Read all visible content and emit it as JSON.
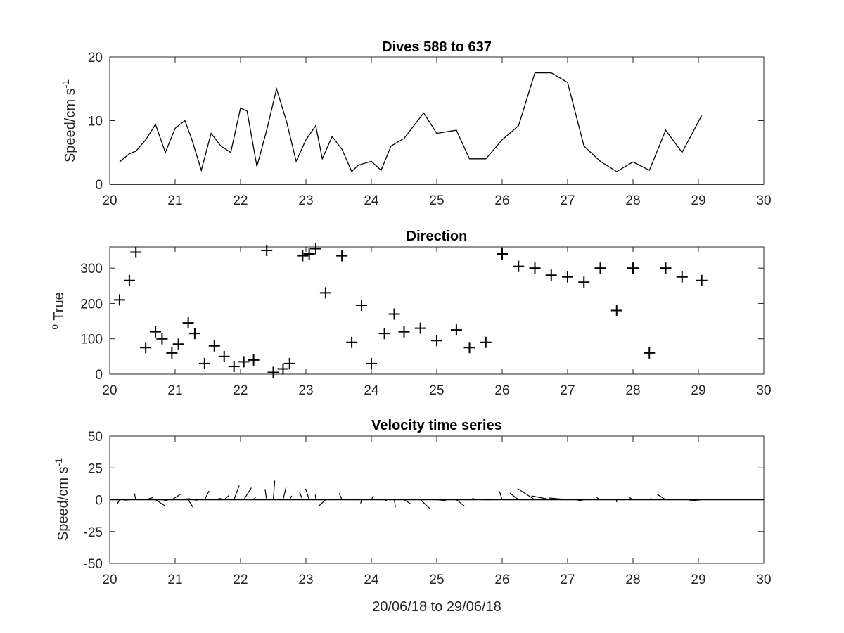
{
  "chart_data": [
    {
      "type": "line",
      "title": "Dives 588 to 637",
      "ylabel_main": "Speed/cm s",
      "ylabel_sup": "-1",
      "xlabel": "",
      "xlim": [
        20,
        30
      ],
      "ylim": [
        0,
        20
      ],
      "xticks": [
        "20",
        "21",
        "22",
        "23",
        "24",
        "25",
        "26",
        "27",
        "28",
        "29",
        "30"
      ],
      "yticks": [
        "0",
        "10",
        "20"
      ],
      "x": [
        20.15,
        20.3,
        20.4,
        20.55,
        20.7,
        20.85,
        21.0,
        21.15,
        21.25,
        21.4,
        21.55,
        21.7,
        21.85,
        22.0,
        22.1,
        22.25,
        22.4,
        22.55,
        22.7,
        22.85,
        23.0,
        23.15,
        23.25,
        23.4,
        23.55,
        23.7,
        23.8,
        24.0,
        24.15,
        24.3,
        24.5,
        24.8,
        25.0,
        25.3,
        25.5,
        25.75,
        26.0,
        26.25,
        26.5,
        26.75,
        27.0,
        27.25,
        27.5,
        27.75,
        28.0,
        28.25,
        28.5,
        28.75,
        29.05
      ],
      "y": [
        3.5,
        4.8,
        5.2,
        7.0,
        9.4,
        5.0,
        8.8,
        10.0,
        7.2,
        2.2,
        8.0,
        6.0,
        5.0,
        12.0,
        11.5,
        2.8,
        8.5,
        15.0,
        10.0,
        3.6,
        7.0,
        9.2,
        4.0,
        7.5,
        5.5,
        2.0,
        3.0,
        3.6,
        2.2,
        6.0,
        7.2,
        11.2,
        8.0,
        8.5,
        4.0,
        4.0,
        7.0,
        9.2,
        17.5,
        17.5,
        16.0,
        6.0,
        3.6,
        2.0,
        3.5,
        2.2,
        8.5,
        5.0,
        10.8
      ]
    },
    {
      "type": "scatter",
      "title": "Direction",
      "ylabel_sup": "o",
      "ylabel_main": " True",
      "xlabel": "",
      "xlim": [
        20,
        30
      ],
      "ylim": [
        0,
        360
      ],
      "xticks": [
        "20",
        "21",
        "22",
        "23",
        "24",
        "25",
        "26",
        "27",
        "28",
        "29",
        "30"
      ],
      "yticks": [
        "0",
        "100",
        "200",
        "300"
      ],
      "marker": "+",
      "x": [
        20.15,
        20.3,
        20.4,
        20.55,
        20.7,
        20.8,
        20.95,
        21.05,
        21.2,
        21.3,
        21.45,
        21.6,
        21.75,
        21.9,
        22.05,
        22.2,
        22.4,
        22.5,
        22.65,
        22.75,
        22.95,
        23.05,
        23.15,
        23.3,
        23.55,
        23.7,
        23.85,
        24.0,
        24.2,
        24.35,
        24.5,
        24.75,
        25.0,
        25.3,
        25.5,
        25.75,
        26.0,
        26.25,
        26.5,
        26.75,
        27.0,
        27.25,
        27.5,
        27.75,
        28.0,
        28.25,
        28.5,
        28.75,
        29.05
      ],
      "y": [
        210,
        265,
        345,
        75,
        120,
        100,
        60,
        85,
        145,
        115,
        30,
        80,
        50,
        22,
        35,
        40,
        350,
        5,
        15,
        30,
        335,
        340,
        355,
        230,
        335,
        90,
        195,
        30,
        115,
        170,
        120,
        130,
        95,
        125,
        75,
        90,
        340,
        305,
        300,
        280,
        275,
        260,
        300,
        180,
        300,
        60,
        300,
        275,
        265
      ]
    },
    {
      "type": "line",
      "title": "Velocity time series",
      "ylabel_main": "Speed/cm s",
      "ylabel_sup": "-1",
      "xlabel": "20/06/18 to 29/06/18",
      "xlim": [
        20,
        30
      ],
      "ylim": [
        -50,
        50
      ],
      "xticks": [
        "20",
        "21",
        "22",
        "23",
        "24",
        "25",
        "26",
        "27",
        "28",
        "29",
        "30"
      ],
      "yticks": [
        "-50",
        "-25",
        "0",
        "25",
        "50"
      ],
      "x": [
        20.15,
        20.3,
        20.4,
        20.55,
        20.7,
        20.8,
        20.95,
        21.05,
        21.2,
        21.3,
        21.45,
        21.6,
        21.75,
        21.9,
        22.05,
        22.2,
        22.4,
        22.5,
        22.65,
        22.75,
        22.95,
        23.05,
        23.15,
        23.3,
        23.55,
        23.7,
        23.85,
        24.0,
        24.2,
        24.35,
        24.5,
        24.75,
        25.0,
        25.3,
        25.5,
        25.75,
        26.0,
        26.25,
        26.5,
        26.75,
        27.0,
        27.25,
        27.5,
        27.75,
        28.0,
        28.25,
        28.5,
        28.75,
        29.05
      ],
      "speed": [
        3.5,
        4.8,
        5.2,
        7.0,
        9.4,
        5.0,
        8.8,
        10.0,
        7.2,
        2.2,
        8.0,
        6.0,
        5.0,
        12.0,
        11.5,
        2.8,
        8.5,
        15.0,
        10.0,
        3.6,
        7.0,
        9.2,
        4.0,
        7.5,
        5.5,
        2.0,
        3.0,
        3.6,
        2.2,
        6.0,
        7.2,
        11.2,
        8.0,
        8.5,
        4.0,
        4.0,
        7.0,
        9.2,
        17.5,
        17.5,
        16.0,
        6.0,
        3.6,
        2.0,
        3.5,
        2.2,
        8.5,
        5.0,
        10.8
      ],
      "direction": [
        210,
        265,
        345,
        75,
        120,
        100,
        60,
        85,
        145,
        115,
        30,
        80,
        50,
        22,
        35,
        40,
        350,
        5,
        15,
        30,
        335,
        340,
        355,
        230,
        335,
        90,
        195,
        30,
        115,
        170,
        120,
        130,
        95,
        125,
        75,
        90,
        340,
        305,
        300,
        280,
        275,
        260,
        300,
        180,
        300,
        60,
        300,
        275,
        265
      ]
    }
  ]
}
